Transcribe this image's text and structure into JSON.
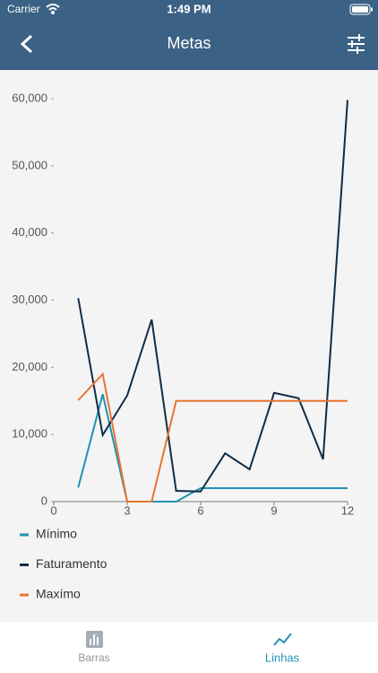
{
  "ui": {
    "carrier": "Carrier",
    "time": "1:49 PM",
    "title": "Metas",
    "tabs": [
      "Barras",
      "Linhas"
    ]
  },
  "chart_data": {
    "type": "line",
    "x": [
      1,
      2,
      3,
      4,
      5,
      6,
      7,
      8,
      9,
      10,
      11,
      12
    ],
    "series": [
      {
        "name": "Mínimo",
        "color": "#2191b5",
        "values": [
          2100,
          16000,
          0,
          0,
          0,
          2000,
          2000,
          2000,
          2000,
          2000,
          2000,
          2000
        ]
      },
      {
        "name": "Faturamento",
        "color": "#0f2c46",
        "values": [
          30300,
          9900,
          15800,
          27100,
          1600,
          1500,
          7200,
          4800,
          16200,
          15400,
          6300,
          59800
        ]
      },
      {
        "name": "Maxímo",
        "color": "#e8732f",
        "values": [
          15100,
          19000,
          0,
          0,
          15000,
          15000,
          15000,
          15000,
          15000,
          15000,
          15000,
          15000
        ]
      }
    ],
    "xlim": [
      0,
      12
    ],
    "xticks": [
      0,
      3,
      6,
      9,
      12
    ],
    "ylim": [
      0,
      60000
    ],
    "yticks": [
      0,
      {
        "value": 10000,
        "label": "10,000"
      },
      {
        "value": 20000,
        "label": "20,000"
      },
      {
        "value": 30000,
        "label": "30,000"
      },
      {
        "value": 40000,
        "label": "40,000"
      },
      {
        "value": 50000,
        "label": "50,000"
      },
      {
        "value": 60000,
        "label": "60,000"
      }
    ]
  }
}
